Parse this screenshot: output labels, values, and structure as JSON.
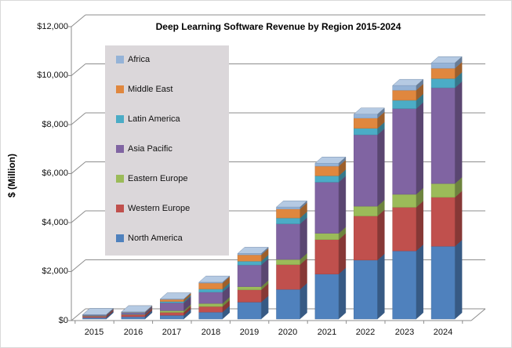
{
  "title": "Deep Learning Software Revenue by Region 2015-2024",
  "y_axis": {
    "title": "$ (Million)",
    "ticks": [
      "$12,000",
      "$10,000",
      "$8,000",
      "$6,000",
      "$4,000",
      "$2,000",
      "$0"
    ]
  },
  "x_axis": {
    "ticks": [
      "2015",
      "2016",
      "2017",
      "2018",
      "2019",
      "2020",
      "2021",
      "2022",
      "2023",
      "2024"
    ]
  },
  "legend": {
    "items": [
      {
        "label": "Africa",
        "color": "#95B3D7"
      },
      {
        "label": "Middle East",
        "color": "#E0873E"
      },
      {
        "label": "Latin America",
        "color": "#4BACC6"
      },
      {
        "label": "Asia Pacific",
        "color": "#8064A2"
      },
      {
        "label": "Eastern Europe",
        "color": "#9BBB59"
      },
      {
        "label": "Western Europe",
        "color": "#C0504D"
      },
      {
        "label": "North America",
        "color": "#4F81BD"
      }
    ],
    "background": "#DBD7DA"
  },
  "chart_data": {
    "type": "bar",
    "variant": "3d-stacked-column",
    "title": "Deep Learning Software Revenue by Region 2015-2024",
    "xlabel": "",
    "ylabel": "$ (Million)",
    "unit": "USD millions",
    "ylim": [
      0,
      12000
    ],
    "y_tick_step": 2000,
    "grid": true,
    "legend_position": "inside-left",
    "categories": [
      "2015",
      "2016",
      "2017",
      "2018",
      "2019",
      "2020",
      "2021",
      "2022",
      "2023",
      "2024"
    ],
    "series": [
      {
        "name": "North America",
        "color": "#4F81BD",
        "values": [
          60,
          95,
          150,
          280,
          690,
          1210,
          1835,
          2405,
          2780,
          2970
        ]
      },
      {
        "name": "Western Europe",
        "color": "#C0504D",
        "values": [
          55,
          80,
          120,
          230,
          500,
          1010,
          1405,
          1800,
          1780,
          2000
        ]
      },
      {
        "name": "Eastern Europe",
        "color": "#9BBB59",
        "values": [
          8,
          12,
          70,
          125,
          130,
          210,
          260,
          400,
          530,
          560
        ]
      },
      {
        "name": "Asia Pacific",
        "color": "#8064A2",
        "values": [
          40,
          70,
          320,
          460,
          885,
          1455,
          2085,
          2915,
          3500,
          3910
        ]
      },
      {
        "name": "Latin America",
        "color": "#4BACC6",
        "values": [
          6,
          10,
          55,
          125,
          155,
          240,
          260,
          265,
          340,
          375
        ]
      },
      {
        "name": "Middle East",
        "color": "#E0873E",
        "values": [
          10,
          18,
          85,
          250,
          260,
          365,
          395,
          415,
          410,
          420
        ]
      },
      {
        "name": "Africa",
        "color": "#95B3D7",
        "values": [
          2,
          5,
          15,
          30,
          55,
          80,
          120,
          160,
          190,
          220
        ]
      }
    ],
    "stack_order_bottom_to_top": [
      "North America",
      "Western Europe",
      "Eastern Europe",
      "Asia Pacific",
      "Latin America",
      "Middle East",
      "Africa"
    ],
    "approx_totals": [
      181,
      290,
      815,
      1500,
      2675,
      4570,
      6360,
      8360,
      9530,
      10455
    ]
  }
}
